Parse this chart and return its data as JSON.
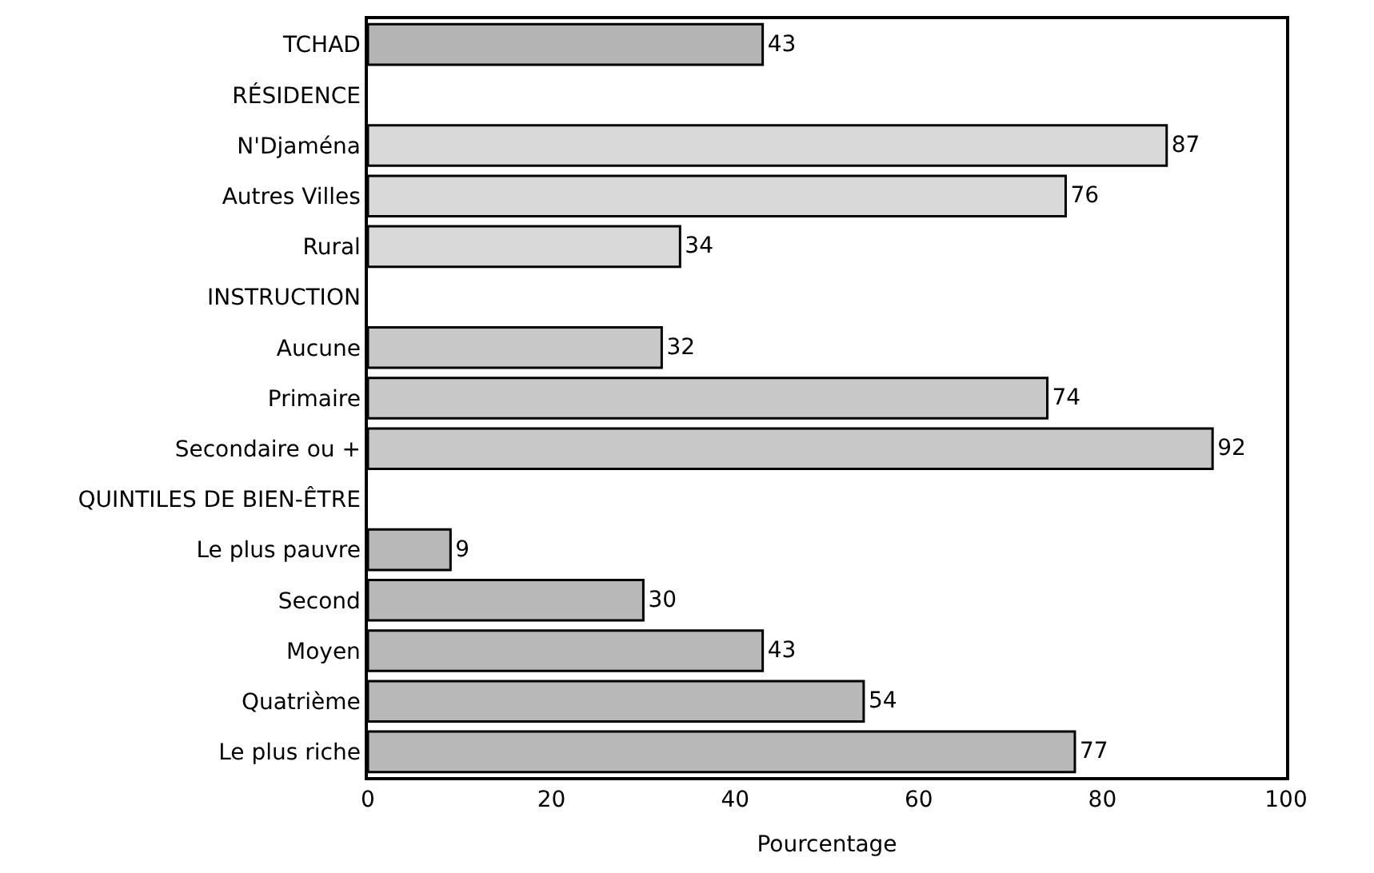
{
  "chart_data": {
    "type": "bar",
    "orientation": "horizontal",
    "xlabel": "Pourcentage",
    "categories": [
      "TCHAD",
      "RÉSIDENCE",
      "N'Djaména",
      "Autres Villes",
      "Rural",
      "INSTRUCTION",
      "Aucune",
      "Primaire",
      "Secondaire ou +",
      "QUINTILES DE BIEN-ÊTRE",
      "Le plus pauvre",
      "Second",
      "Moyen",
      "Quatrième",
      "Le plus riche"
    ],
    "values": [
      43,
      null,
      87,
      76,
      34,
      null,
      32,
      74,
      92,
      null,
      9,
      30,
      43,
      54,
      77
    ],
    "colors": [
      "#b4b4b4",
      null,
      "#d9d9d9",
      "#d9d9d9",
      "#d9d9d9",
      null,
      "#c8c8c8",
      "#c8c8c8",
      "#c8c8c8",
      null,
      "#b8b8b8",
      "#b8b8b8",
      "#b8b8b8",
      "#b8b8b8",
      "#b8b8b8"
    ],
    "xlim": [
      0,
      100
    ],
    "xticks": [
      0,
      20,
      40,
      60,
      80,
      100
    ],
    "data_labels": true
  }
}
